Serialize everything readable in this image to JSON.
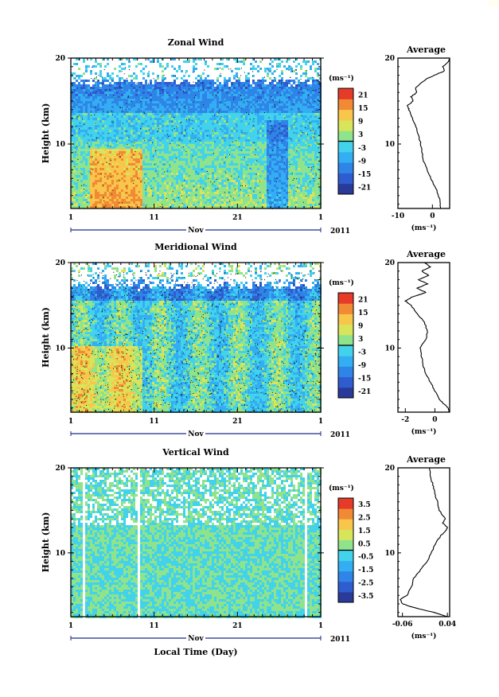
{
  "chart_data": [
    {
      "type": "heatmap",
      "title": "Zonal Wind",
      "ylabel": "Height (km)",
      "y_ticks": [
        "20",
        "10"
      ],
      "x_ticks": [
        "1",
        "11",
        "21",
        "1"
      ],
      "month_label": "Nov",
      "year_label": "2011",
      "ylim": [
        2.5,
        20
      ],
      "colorbar": {
        "unit": "(ms⁻¹)",
        "ticks": [
          "21",
          "15",
          "9",
          "3",
          "-3",
          "-9",
          "-15",
          "-21"
        ],
        "range": [
          -24,
          24
        ]
      },
      "profile": {
        "title": "Average",
        "x_ticks": [
          "-10",
          "0"
        ],
        "xlabel": "(ms⁻¹)",
        "y_ticks": [
          "20",
          "10"
        ],
        "xlim": [
          -10,
          5
        ],
        "height_km": [
          2.5,
          3,
          4,
          5,
          6,
          7,
          8,
          9,
          10,
          11,
          12,
          13,
          13.5,
          14,
          14.5,
          15,
          15.5,
          16,
          16.5,
          17,
          17.5,
          18,
          18.5,
          19,
          19.5,
          20
        ],
        "value": [
          2.2,
          2.4,
          1.8,
          0.8,
          -0.5,
          -1.5,
          -2.5,
          -3.0,
          -3.4,
          -4.0,
          -4.8,
          -5.8,
          -6.3,
          -6.8,
          -7.2,
          -5.5,
          -6.2,
          -4.5,
          -5.0,
          -3.5,
          -2.0,
          0.5,
          3.5,
          3.0,
          4.5,
          5.0
        ]
      }
    },
    {
      "type": "heatmap",
      "title": "Meridional Wind",
      "ylabel": "Height (km)",
      "y_ticks": [
        "20",
        "10"
      ],
      "x_ticks": [
        "1",
        "11",
        "21",
        "1"
      ],
      "month_label": "Nov",
      "year_label": "2011",
      "ylim": [
        2.5,
        20
      ],
      "colorbar": {
        "unit": "(ms⁻¹)",
        "ticks": [
          "21",
          "15",
          "9",
          "3",
          "-3",
          "-9",
          "-15",
          "-21"
        ],
        "range": [
          -24,
          24
        ]
      },
      "profile": {
        "title": "Average",
        "x_ticks": [
          "-2",
          "0"
        ],
        "xlabel": "(ms⁻¹)",
        "y_ticks": [
          "20",
          "10"
        ],
        "xlim": [
          -2.5,
          1
        ],
        "height_km": [
          2.5,
          3,
          3.5,
          4,
          5,
          6,
          7,
          8,
          9,
          10,
          11,
          12,
          13,
          14,
          15,
          15.5,
          16,
          16.5,
          17,
          17.5,
          18,
          18.5,
          19,
          19.5,
          20
        ],
        "value": [
          1.0,
          0.9,
          0.6,
          0.3,
          0.0,
          -0.3,
          -0.6,
          -0.8,
          -0.9,
          -1.0,
          -0.6,
          -0.5,
          -0.7,
          -1.2,
          -1.6,
          -2.0,
          -1.5,
          -0.6,
          -1.2,
          -0.5,
          -1.1,
          -0.4,
          -0.9,
          -0.3,
          -0.7
        ]
      }
    },
    {
      "type": "heatmap",
      "title": "Vertical Wind",
      "ylabel": "Height (km)",
      "y_ticks": [
        "20",
        "10"
      ],
      "x_ticks": [
        "1",
        "11",
        "21",
        "1"
      ],
      "month_label": "Nov",
      "year_label": "2011",
      "xlabel": "Local Time (Day)",
      "ylim": [
        2.5,
        20
      ],
      "colorbar": {
        "unit": "(ms⁻¹)",
        "ticks": [
          "3.5",
          "2.5",
          "1.5",
          "0.5",
          "-0.5",
          "-1.5",
          "-2.5",
          "-3.5"
        ],
        "range": [
          -4,
          4
        ]
      },
      "profile": {
        "title": "Average",
        "x_ticks": [
          "-0.06",
          "0.04"
        ],
        "xlabel": "(ms⁻¹)",
        "y_ticks": [
          "20",
          "10"
        ],
        "xlim": [
          -0.07,
          0.045
        ],
        "height_km": [
          2.5,
          3,
          3.5,
          4,
          4.5,
          5,
          6,
          7,
          8,
          9,
          10,
          11,
          12,
          12.5,
          13,
          13.5,
          14,
          15,
          16,
          17,
          18,
          19,
          20
        ],
        "value": [
          0.04,
          0.01,
          -0.03,
          -0.06,
          -0.065,
          -0.05,
          -0.04,
          -0.035,
          -0.02,
          -0.005,
          0.005,
          0.012,
          0.025,
          0.035,
          0.04,
          0.03,
          0.035,
          0.022,
          0.018,
          0.012,
          0.008,
          0.002,
          0.0
        ]
      }
    }
  ]
}
